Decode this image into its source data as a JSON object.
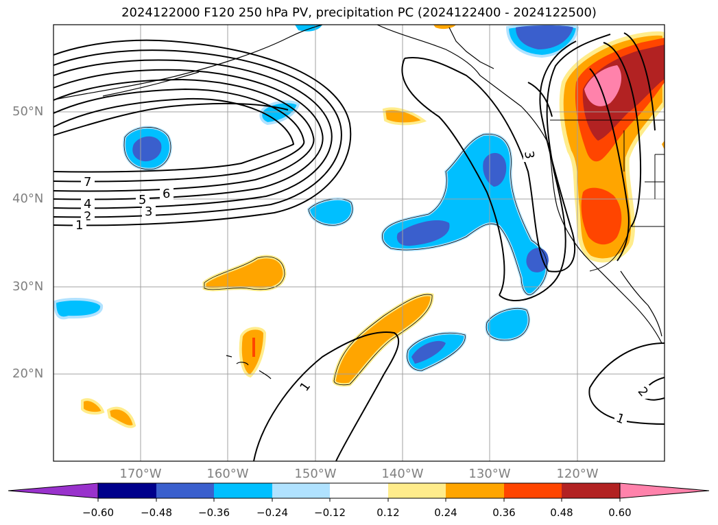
{
  "title": "2024122000 F120 250 hPa PV, precipitation PC (2024122400 - 2024122500)",
  "lat_labels": [
    "50°N",
    "40°N",
    "30°N",
    "20°N"
  ],
  "lon_labels": [
    "170°W",
    "160°W",
    "150°W",
    "140°W",
    "130°W",
    "120°W"
  ],
  "colorbar": {
    "colors": [
      "#9932cc",
      "#00008b",
      "#3a5fcd",
      "#00bfff",
      "#b0e2ff",
      "#ffffff",
      "#ffec8b",
      "#ffa500",
      "#ff4500",
      "#b22222",
      "#ff82ab"
    ],
    "tick_labels": [
      "−0.60",
      "−0.48",
      "−0.36",
      "−0.24",
      "−0.12",
      "0.12",
      "0.24",
      "0.36",
      "0.48",
      "0.60"
    ]
  },
  "contour_labels": [
    "7",
    "6",
    "5",
    "4",
    "3",
    "2",
    "1",
    "3",
    "1",
    "1",
    "2"
  ]
}
